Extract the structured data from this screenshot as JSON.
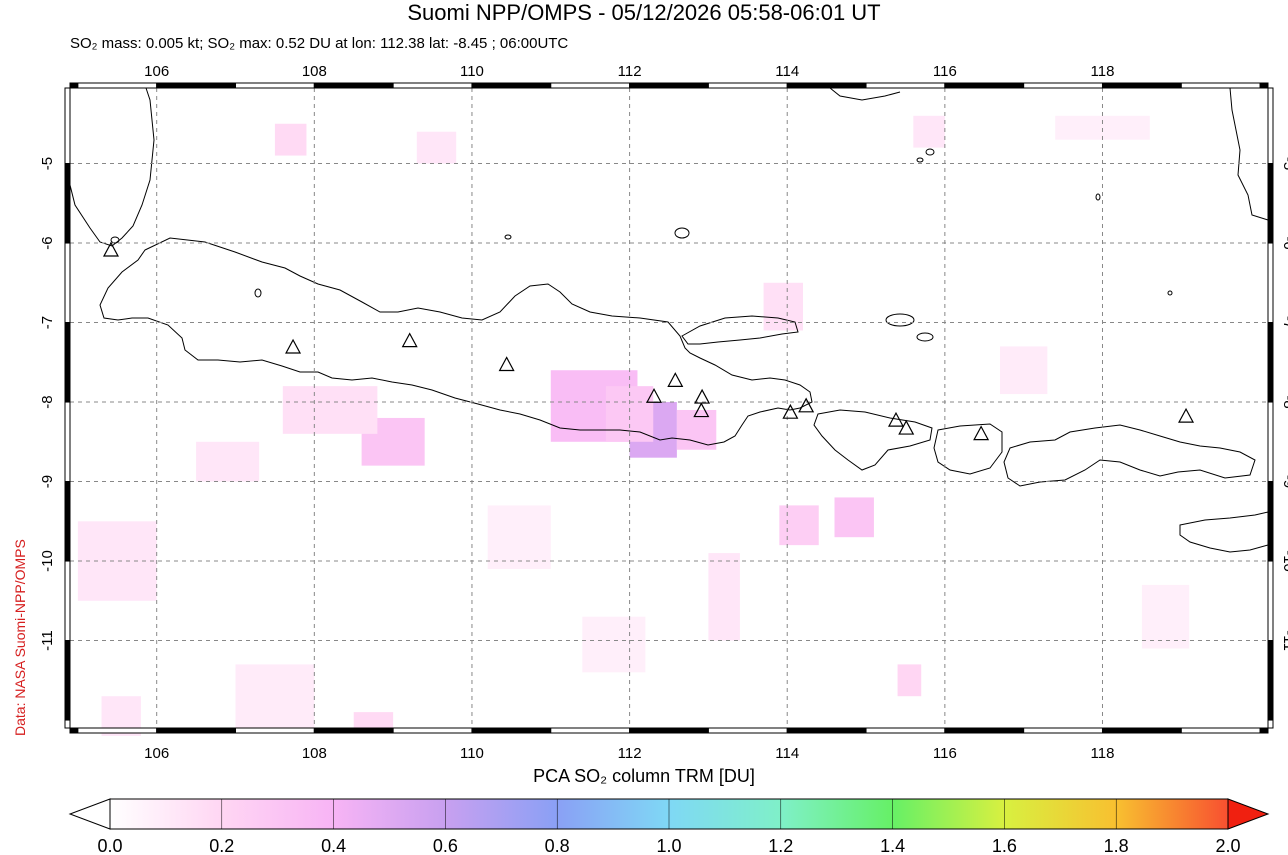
{
  "header": {
    "title": "Suomi NPP/OMPS - 05/12/2026 05:58-06:01 UT",
    "subtitle": "SO₂ mass: 0.005 kt; SO₂ max: 0.52 DU at lon: 112.38 lat: -8.45 ; 06:00UTC"
  },
  "credit": "Data: NASA Suomi-NPP/OMPS",
  "map": {
    "lon_range": [
      104.9,
      120.1
    ],
    "lat_range": [
      -12.1,
      -4.05
    ],
    "lon_ticks": [
      106,
      108,
      110,
      112,
      114,
      116,
      118
    ],
    "lat_ticks": [
      -5,
      -6,
      -7,
      -8,
      -9,
      -10,
      -11
    ],
    "lon_tick_labels": [
      "106",
      "108",
      "110",
      "112",
      "114",
      "116",
      "118"
    ],
    "lat_tick_labels": [
      "-5",
      "-6",
      "-7",
      "-8",
      "-9",
      "-10",
      "-11"
    ],
    "grid": true,
    "volcanoes": [
      [
        105.42,
        -6.1
      ],
      [
        107.73,
        -7.32
      ],
      [
        109.21,
        -7.24
      ],
      [
        110.44,
        -7.54
      ],
      [
        112.31,
        -7.94
      ],
      [
        112.58,
        -7.74
      ],
      [
        112.92,
        -7.95
      ],
      [
        112.91,
        -8.12
      ],
      [
        114.04,
        -8.14
      ],
      [
        114.24,
        -8.06
      ],
      [
        115.38,
        -8.24
      ],
      [
        115.51,
        -8.34
      ],
      [
        116.46,
        -8.41
      ],
      [
        119.06,
        -8.19
      ]
    ],
    "so2_cells": [
      [
        111.0,
        -7.6,
        1.1,
        0.9,
        0.35
      ],
      [
        112.0,
        -8.0,
        0.6,
        0.7,
        0.52
      ],
      [
        112.6,
        -8.1,
        0.5,
        0.5,
        0.3
      ],
      [
        111.7,
        -7.8,
        0.6,
        0.7,
        0.28
      ],
      [
        108.6,
        -8.2,
        0.8,
        0.6,
        0.3
      ],
      [
        107.6,
        -7.8,
        1.2,
        0.6,
        0.15
      ],
      [
        113.9,
        -9.3,
        0.5,
        0.5,
        0.25
      ],
      [
        114.6,
        -9.2,
        0.5,
        0.5,
        0.3
      ],
      [
        115.4,
        -11.3,
        0.3,
        0.4,
        0.2
      ],
      [
        107.5,
        -4.5,
        0.4,
        0.4,
        0.18
      ],
      [
        109.3,
        -4.6,
        0.5,
        0.4,
        0.12
      ],
      [
        115.6,
        -4.4,
        0.4,
        0.4,
        0.12
      ],
      [
        113.7,
        -6.5,
        0.5,
        0.6,
        0.15
      ],
      [
        106.5,
        -8.5,
        0.8,
        0.5,
        0.12
      ],
      [
        105.0,
        -9.5,
        1.0,
        1.0,
        0.12
      ],
      [
        110.2,
        -9.3,
        0.8,
        0.8,
        0.08
      ],
      [
        113.0,
        -9.9,
        0.4,
        1.1,
        0.12
      ],
      [
        116.7,
        -7.3,
        0.6,
        0.6,
        0.1
      ],
      [
        118.5,
        -10.3,
        0.6,
        0.8,
        0.08
      ],
      [
        107.0,
        -11.3,
        1.0,
        0.8,
        0.1
      ],
      [
        108.5,
        -11.9,
        0.5,
        0.25,
        0.18
      ],
      [
        105.3,
        -11.7,
        0.5,
        0.5,
        0.12
      ],
      [
        117.4,
        -4.4,
        1.2,
        0.3,
        0.08
      ],
      [
        111.4,
        -10.7,
        0.8,
        0.7,
        0.08
      ]
    ]
  },
  "colorbar": {
    "title": "PCA SO₂ column TRM [DU]",
    "tick_labels": [
      "0.0",
      "0.2",
      "0.4",
      "0.6",
      "0.8",
      "1.0",
      "1.2",
      "1.4",
      "1.6",
      "1.8",
      "2.0"
    ],
    "colors": [
      "#ffffff",
      "#ffd6f3",
      "#f7b4f5",
      "#c8a0f0",
      "#8aa0f5",
      "#7fd8f5",
      "#7ff0c8",
      "#66f066",
      "#d8f040",
      "#f8c030",
      "#f85030",
      "#f02010"
    ]
  }
}
